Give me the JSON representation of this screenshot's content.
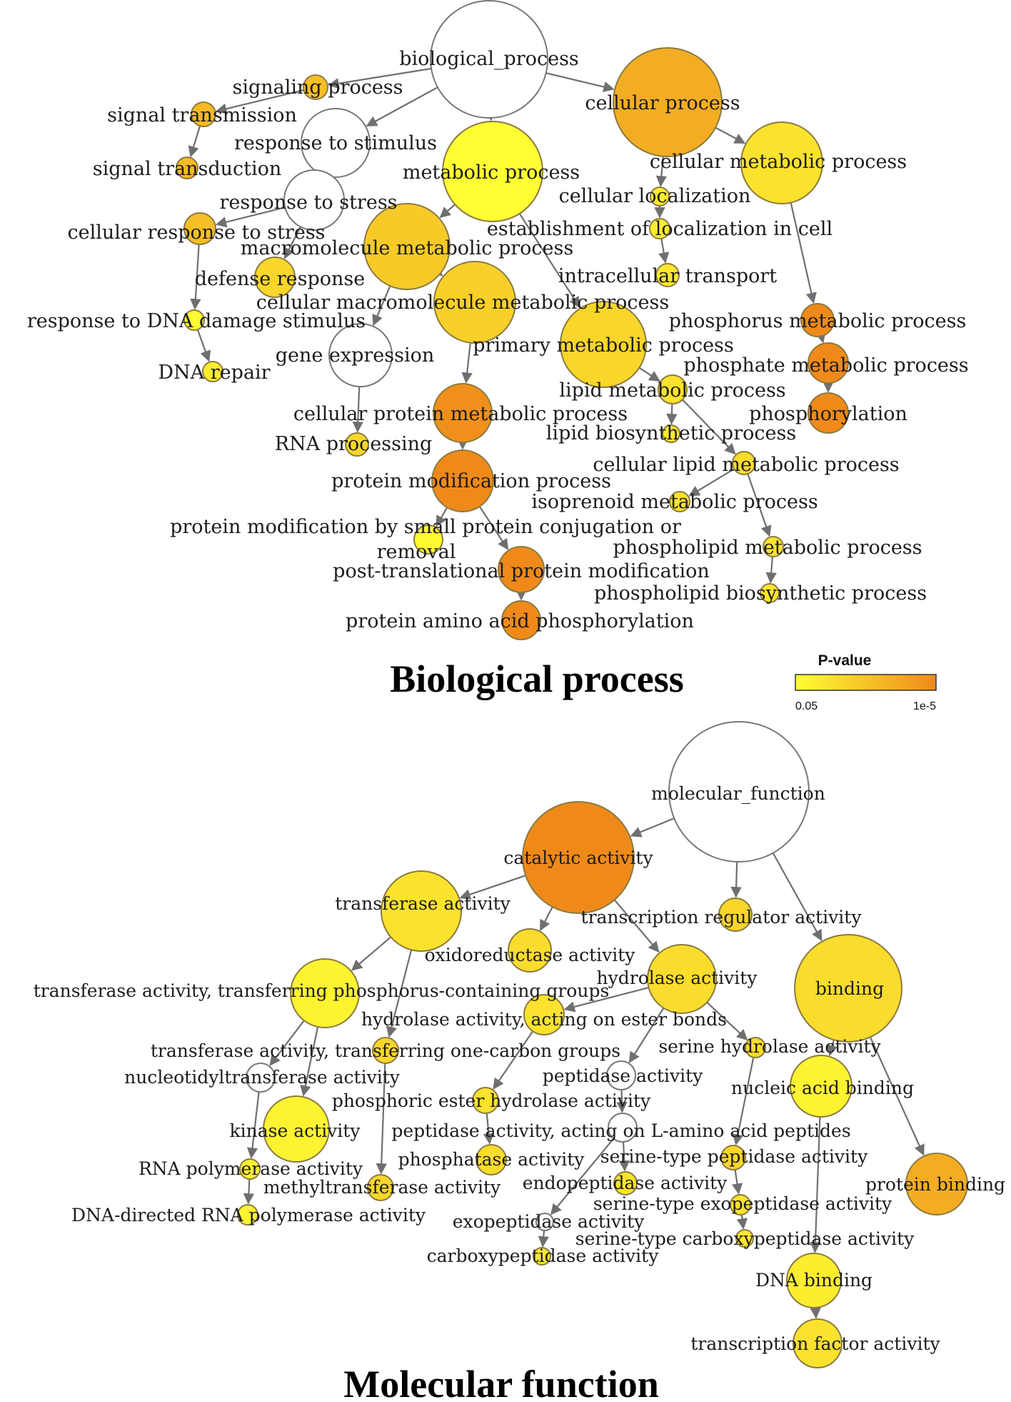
{
  "colors": {
    "p_low": "#ffff33",
    "p_high": "#ef8a1a",
    "white": "#ffffff",
    "edge": "#6f6f6f"
  },
  "legend": {
    "title": "P-value",
    "low_label": "0.05",
    "high_label": "1e-5"
  },
  "panels": [
    {
      "id": "bp",
      "caption": "Biological process",
      "nodes": [
        {
          "id": "bp_root",
          "label": "biological_process",
          "significance": null
        },
        {
          "id": "signaling",
          "label": "signaling process",
          "significance": 0.55
        },
        {
          "id": "signal_transmission",
          "label": "signal transmission",
          "significance": 0.6
        },
        {
          "id": "signal_transduction",
          "label": "signal transduction",
          "significance": 0.6
        },
        {
          "id": "response_stimulus",
          "label": "response to stimulus",
          "significance": null
        },
        {
          "id": "response_stress",
          "label": "response to stress",
          "significance": null
        },
        {
          "id": "cell_resp_stress",
          "label": "cellular response to stress",
          "significance": 0.55
        },
        {
          "id": "defense",
          "label": "defense response",
          "significance": 0.35
        },
        {
          "id": "dna_damage",
          "label": "response to DNA damage stimulus",
          "significance": 0.05
        },
        {
          "id": "dna_repair",
          "label": "DNA repair",
          "significance": 0.15
        },
        {
          "id": "cellular_process",
          "label": "cellular process",
          "significance": 0.7
        },
        {
          "id": "metabolic",
          "label": "metabolic process",
          "significance": 0.0
        },
        {
          "id": "cell_metabolic",
          "label": "cellular metabolic process",
          "significance": 0.25
        },
        {
          "id": "cell_localization",
          "label": "cellular localization",
          "significance": 0.15
        },
        {
          "id": "estab_localization",
          "label": "establishment of localization in cell",
          "significance": 0.15
        },
        {
          "id": "intracell_transport",
          "label": "intracellular transport",
          "significance": 0.2
        },
        {
          "id": "macromol",
          "label": "macromolecule metabolic process",
          "significance": 0.45
        },
        {
          "id": "cell_macromol",
          "label": "cellular macromolecule metabolic process",
          "significance": 0.4
        },
        {
          "id": "gene_expression",
          "label": "gene expression",
          "significance": null
        },
        {
          "id": "primary_metabolic",
          "label": "primary metabolic process",
          "significance": 0.35
        },
        {
          "id": "phosphorus",
          "label": "phosphorus metabolic process",
          "significance": 1.0
        },
        {
          "id": "phosphate",
          "label": "phosphate metabolic process",
          "significance": 1.0
        },
        {
          "id": "phosphorylation",
          "label": "phosphorylation",
          "significance": 1.0
        },
        {
          "id": "lipid_metabolic",
          "label": "lipid metabolic process",
          "significance": 0.25
        },
        {
          "id": "lipid_biosynth",
          "label": "lipid biosynthetic process",
          "significance": 0.2
        },
        {
          "id": "cell_protein",
          "label": "cellular protein metabolic process",
          "significance": 0.95
        },
        {
          "id": "rna_processing",
          "label": "RNA processing",
          "significance": 0.35
        },
        {
          "id": "protein_mod",
          "label": "protein modification process",
          "significance": 1.0
        },
        {
          "id": "cell_lipid",
          "label": "cellular lipid metabolic process",
          "significance": 0.3
        },
        {
          "id": "isoprenoid",
          "label": "isoprenoid metabolic process",
          "significance": 0.25
        },
        {
          "id": "protein_conj",
          "label": "protein modification by small protein conjugation or removal",
          "significance": 0.05
        },
        {
          "id": "phospholipid_met",
          "label": "phospholipid metabolic process",
          "significance": 0.25
        },
        {
          "id": "post_trans",
          "label": "post-translational protein modification",
          "significance": 1.0
        },
        {
          "id": "phospholipid_bio",
          "label": "phospholipid biosynthetic process",
          "significance": 0.2
        },
        {
          "id": "protein_aa_phos",
          "label": "protein amino acid phosphorylation",
          "significance": 1.0
        }
      ],
      "edges": [
        [
          "bp_root",
          "signaling"
        ],
        [
          "bp_root",
          "response_stimulus"
        ],
        [
          "bp_root",
          "metabolic"
        ],
        [
          "bp_root",
          "cellular_process"
        ],
        [
          "signaling",
          "signal_transmission"
        ],
        [
          "signal_transmission",
          "signal_transduction"
        ],
        [
          "response_stimulus",
          "response_stress"
        ],
        [
          "response_stress",
          "cell_resp_stress"
        ],
        [
          "response_stress",
          "defense"
        ],
        [
          "cell_resp_stress",
          "dna_damage"
        ],
        [
          "dna_damage",
          "dna_repair"
        ],
        [
          "cellular_process",
          "cell_metabolic"
        ],
        [
          "cellular_process",
          "cell_localization"
        ],
        [
          "cell_localization",
          "estab_localization"
        ],
        [
          "estab_localization",
          "intracell_transport"
        ],
        [
          "metabolic",
          "macromol"
        ],
        [
          "metabolic",
          "primary_metabolic"
        ],
        [
          "cell_metabolic",
          "phosphorus"
        ],
        [
          "macromol",
          "cell_macromol"
        ],
        [
          "macromol",
          "gene_expression"
        ],
        [
          "cell_macromol",
          "cell_protein"
        ],
        [
          "gene_expression",
          "rna_processing"
        ],
        [
          "primary_metabolic",
          "lipid_metabolic"
        ],
        [
          "phosphorus",
          "phosphate"
        ],
        [
          "phosphate",
          "phosphorylation"
        ],
        [
          "lipid_metabolic",
          "lipid_biosynth"
        ],
        [
          "lipid_metabolic",
          "cell_lipid"
        ],
        [
          "cell_protein",
          "protein_mod"
        ],
        [
          "protein_mod",
          "protein_conj"
        ],
        [
          "protein_mod",
          "post_trans"
        ],
        [
          "cell_lipid",
          "isoprenoid"
        ],
        [
          "cell_lipid",
          "phospholipid_met"
        ],
        [
          "phospholipid_met",
          "phospholipid_bio"
        ],
        [
          "post_trans",
          "protein_aa_phos"
        ]
      ]
    },
    {
      "id": "mf",
      "caption": "Molecular function",
      "nodes": [
        {
          "id": "mf_root",
          "label": "molecular_function",
          "significance": null
        },
        {
          "id": "catalytic",
          "label": "catalytic activity",
          "significance": 1.0
        },
        {
          "id": "transferase",
          "label": "transferase activity",
          "significance": 0.25
        },
        {
          "id": "transcription_reg",
          "label": "transcription regulator activity",
          "significance": 0.35
        },
        {
          "id": "oxidoreductase",
          "label": "oxidoreductase activity",
          "significance": 0.3
        },
        {
          "id": "hydrolase",
          "label": "hydrolase activity",
          "significance": 0.3
        },
        {
          "id": "binding",
          "label": "binding",
          "significance": 0.3
        },
        {
          "id": "transf_phos",
          "label": "transferase activity, transferring phosphorus-containing groups",
          "significance": 0.1
        },
        {
          "id": "hydro_ester",
          "label": "hydrolase activity, acting on ester bonds",
          "significance": 0.25
        },
        {
          "id": "transf_onecarbon",
          "label": "transferase activity, transferring one-carbon groups",
          "significance": 0.35
        },
        {
          "id": "serine_hydrolase",
          "label": "serine hydrolase activity",
          "significance": 0.3
        },
        {
          "id": "nucleotidyltransferase",
          "label": "nucleotidyltransferase activity",
          "significance": null
        },
        {
          "id": "peptidase",
          "label": "peptidase activity",
          "significance": null
        },
        {
          "id": "nucleic_acid",
          "label": "nucleic acid binding",
          "significance": 0.1
        },
        {
          "id": "phos_ester_hydro",
          "label": "phosphoric ester hydrolase activity",
          "significance": 0.25
        },
        {
          "id": "kinase",
          "label": "kinase activity",
          "significance": 0.1
        },
        {
          "id": "peptidase_lamino",
          "label": "peptidase activity, acting on L-amino acid peptides",
          "significance": null
        },
        {
          "id": "phosphatase",
          "label": "phosphatase activity",
          "significance": 0.3
        },
        {
          "id": "serine_peptidase",
          "label": "serine-type peptidase activity",
          "significance": 0.35
        },
        {
          "id": "rna_polymerase",
          "label": "RNA polymerase activity",
          "significance": 0.1
        },
        {
          "id": "methyltransferase",
          "label": "methyltransferase activity",
          "significance": 0.35
        },
        {
          "id": "endopeptidase",
          "label": "endopeptidase activity",
          "significance": 0.25
        },
        {
          "id": "serine_exopeptidase",
          "label": "serine-type exopeptidase activity",
          "significance": 0.25
        },
        {
          "id": "protein_binding",
          "label": "protein binding",
          "significance": 0.7
        },
        {
          "id": "dna_rna_polymerase",
          "label": "DNA-directed RNA polymerase activity",
          "significance": 0.1
        },
        {
          "id": "exopeptidase",
          "label": "exopeptidase activity",
          "significance": null
        },
        {
          "id": "serine_carboxy",
          "label": "serine-type carboxypeptidase activity",
          "significance": 0.2
        },
        {
          "id": "carboxypeptidase",
          "label": "carboxypeptidase activity",
          "significance": 0.2
        },
        {
          "id": "dna_binding",
          "label": "DNA binding",
          "significance": 0.15
        },
        {
          "id": "tf_activity",
          "label": "transcription factor activity",
          "significance": 0.25
        }
      ],
      "edges": [
        [
          "mf_root",
          "catalytic"
        ],
        [
          "mf_root",
          "transcription_reg"
        ],
        [
          "mf_root",
          "binding"
        ],
        [
          "catalytic",
          "transferase"
        ],
        [
          "catalytic",
          "oxidoreductase"
        ],
        [
          "catalytic",
          "hydrolase"
        ],
        [
          "transferase",
          "transf_phos"
        ],
        [
          "transferase",
          "transf_onecarbon"
        ],
        [
          "transf_phos",
          "nucleotidyltransferase"
        ],
        [
          "transf_phos",
          "kinase"
        ],
        [
          "nucleotidyltransferase",
          "rna_polymerase"
        ],
        [
          "rna_polymerase",
          "dna_rna_polymerase"
        ],
        [
          "transf_onecarbon",
          "methyltransferase"
        ],
        [
          "hydrolase",
          "hydro_ester"
        ],
        [
          "hydrolase",
          "peptidase"
        ],
        [
          "hydrolase",
          "serine_hydrolase"
        ],
        [
          "hydro_ester",
          "phos_ester_hydro"
        ],
        [
          "phos_ester_hydro",
          "phosphatase"
        ],
        [
          "peptidase",
          "peptidase_lamino"
        ],
        [
          "peptidase_lamino",
          "endopeptidase"
        ],
        [
          "peptidase_lamino",
          "exopeptidase"
        ],
        [
          "serine_hydrolase",
          "serine_peptidase"
        ],
        [
          "serine_peptidase",
          "serine_exopeptidase"
        ],
        [
          "serine_exopeptidase",
          "serine_carboxy"
        ],
        [
          "exopeptidase",
          "carboxypeptidase"
        ],
        [
          "binding",
          "nucleic_acid"
        ],
        [
          "binding",
          "protein_binding"
        ],
        [
          "nucleic_acid",
          "dna_binding"
        ],
        [
          "dna_binding",
          "tf_activity"
        ]
      ]
    }
  ]
}
